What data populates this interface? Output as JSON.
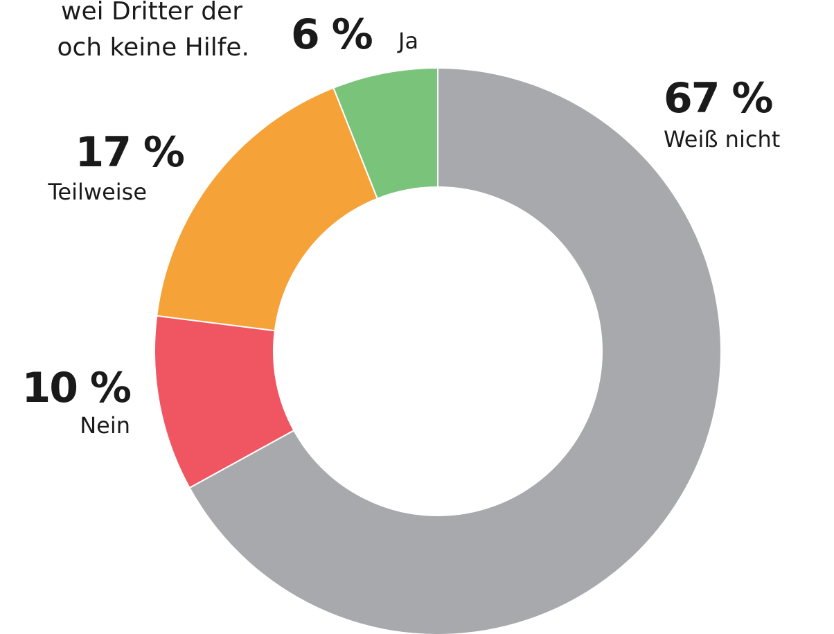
{
  "title_lines": [
    "wei Dritter der",
    "och keine Hilfe."
  ],
  "chart_data": {
    "type": "donut",
    "categories": [
      "Weiß nicht",
      "Nein",
      "Teilweise",
      "Ja"
    ],
    "values": [
      67,
      10,
      17,
      6
    ],
    "value_labels": [
      "67 %",
      "10 %",
      "17 %",
      "6 %"
    ],
    "colors": [
      "#a8a9ad",
      "#f05562",
      "#f5a338",
      "#79c37a"
    ]
  }
}
